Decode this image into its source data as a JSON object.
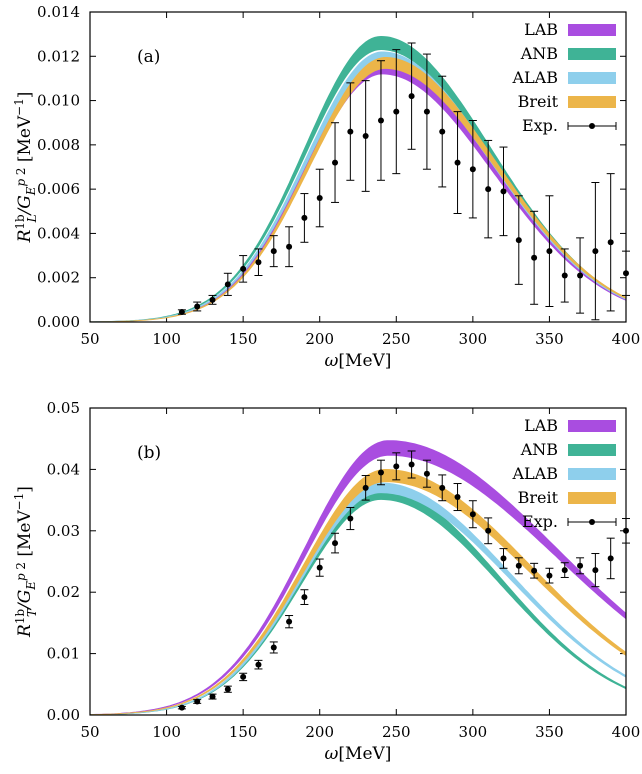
{
  "chart_data": [
    {
      "type": "line",
      "panel_label": "(a)",
      "xlabel": "ω[MeV]",
      "ylabel": "R_L^{1b}/G_E^{p 2} [MeV^{-1}]",
      "xlim": [
        50,
        400
      ],
      "ylim": [
        0,
        0.014
      ],
      "xticks": [
        "50",
        "100",
        "150",
        "200",
        "250",
        "300",
        "350",
        "400"
      ],
      "yticks": [
        "0.000",
        "0.002",
        "0.004",
        "0.006",
        "0.008",
        "0.010",
        "0.012",
        "0.014"
      ],
      "legend_position": "top-right",
      "bands": [
        {
          "name": "LAB",
          "color": "#a94de0",
          "peak": 0.01155,
          "center": 241,
          "sl": 50,
          "sr": 72,
          "width": 0.00035
        },
        {
          "name": "ANB",
          "color": "#3fb396",
          "peak": 0.0126,
          "center": 240,
          "sl": 50,
          "sr": 72,
          "width": 0.0003
        },
        {
          "name": "ALAB",
          "color": "#8ecfec",
          "peak": 0.01195,
          "center": 241,
          "sl": 50,
          "sr": 72,
          "width": 0.00025
        },
        {
          "name": "Breit",
          "color": "#ecb549",
          "peak": 0.0117,
          "center": 243,
          "sl": 50,
          "sr": 72,
          "width": 0.00025
        }
      ],
      "experiment": {
        "name": "Exp.",
        "points": [
          [
            110,
            0.00045,
            0.0001
          ],
          [
            120,
            0.0007,
            0.0002
          ],
          [
            130,
            0.001,
            0.0002
          ],
          [
            140,
            0.0017,
            0.0005
          ],
          [
            150,
            0.0024,
            0.0006
          ],
          [
            160,
            0.0027,
            0.0006
          ],
          [
            170,
            0.0032,
            0.0007
          ],
          [
            180,
            0.0034,
            0.0009
          ],
          [
            190,
            0.0047,
            0.0011
          ],
          [
            200,
            0.0056,
            0.0013
          ],
          [
            210,
            0.0072,
            0.0018
          ],
          [
            220,
            0.0086,
            0.0022
          ],
          [
            230,
            0.0084,
            0.0025
          ],
          [
            240,
            0.0091,
            0.0027
          ],
          [
            250,
            0.0095,
            0.0028
          ],
          [
            260,
            0.0102,
            0.0024
          ],
          [
            270,
            0.0095,
            0.0026
          ],
          [
            280,
            0.0086,
            0.0025
          ],
          [
            290,
            0.0072,
            0.0023
          ],
          [
            300,
            0.0069,
            0.0022
          ],
          [
            310,
            0.006,
            0.0022
          ],
          [
            320,
            0.0059,
            0.002
          ],
          [
            330,
            0.0037,
            0.002
          ],
          [
            340,
            0.0029,
            0.0021
          ],
          [
            350,
            0.0032,
            0.0025
          ],
          [
            360,
            0.0021,
            0.0012
          ],
          [
            370,
            0.0021,
            0.0017
          ],
          [
            380,
            0.0032,
            0.0031
          ],
          [
            390,
            0.0036,
            0.0031
          ],
          [
            400,
            0.0022,
            0.001
          ]
        ]
      }
    },
    {
      "type": "line",
      "panel_label": "(b)",
      "xlabel": "ω[MeV]",
      "ylabel": "R_T^{1b}/G_E^{p 2} [MeV^{-1}]",
      "xlim": [
        50,
        400
      ],
      "ylim": [
        0,
        0.05
      ],
      "xticks": [
        "50",
        "100",
        "150",
        "200",
        "250",
        "300",
        "350",
        "400"
      ],
      "yticks": [
        "0.00",
        "0.01",
        "0.02",
        "0.03",
        "0.04",
        "0.05"
      ],
      "legend_position": "top-right",
      "bands": [
        {
          "name": "LAB",
          "color": "#a94de0",
          "peak": 0.0435,
          "center": 245,
          "sl": 55,
          "sr": 110,
          "width": 0.0012
        },
        {
          "name": "ANB",
          "color": "#3fb396",
          "peak": 0.036,
          "center": 240,
          "sl": 52,
          "sr": 78,
          "width": 0.0009
        },
        {
          "name": "ALAB",
          "color": "#8ecfec",
          "peak": 0.037,
          "center": 240,
          "sl": 52,
          "sr": 85,
          "width": 0.0008
        },
        {
          "name": "Breit",
          "color": "#ecb549",
          "peak": 0.039,
          "center": 243,
          "sl": 54,
          "sr": 95,
          "width": 0.001
        }
      ],
      "experiment": {
        "name": "Exp.",
        "points": [
          [
            110,
            0.0012,
            0.0002
          ],
          [
            120,
            0.0022,
            0.0003
          ],
          [
            130,
            0.003,
            0.0004
          ],
          [
            140,
            0.0042,
            0.0005
          ],
          [
            150,
            0.0062,
            0.0006
          ],
          [
            160,
            0.0082,
            0.0007
          ],
          [
            170,
            0.011,
            0.0009
          ],
          [
            180,
            0.0152,
            0.001
          ],
          [
            190,
            0.0192,
            0.0012
          ],
          [
            200,
            0.024,
            0.0014
          ],
          [
            210,
            0.028,
            0.0016
          ],
          [
            220,
            0.032,
            0.0018
          ],
          [
            230,
            0.037,
            0.002
          ],
          [
            240,
            0.0395,
            0.002
          ],
          [
            250,
            0.0405,
            0.0022
          ],
          [
            260,
            0.0408,
            0.0022
          ],
          [
            270,
            0.0393,
            0.0022
          ],
          [
            280,
            0.037,
            0.0021
          ],
          [
            290,
            0.0355,
            0.0022
          ],
          [
            300,
            0.0327,
            0.0022
          ],
          [
            310,
            0.03,
            0.0021
          ],
          [
            320,
            0.0255,
            0.0016
          ],
          [
            330,
            0.0243,
            0.0013
          ],
          [
            340,
            0.0235,
            0.0012
          ],
          [
            350,
            0.0227,
            0.0012
          ],
          [
            360,
            0.0236,
            0.0012
          ],
          [
            370,
            0.0243,
            0.0013
          ],
          [
            380,
            0.0236,
            0.0027
          ],
          [
            390,
            0.0255,
            0.0033
          ],
          [
            400,
            0.03,
            0.002
          ]
        ]
      }
    }
  ]
}
